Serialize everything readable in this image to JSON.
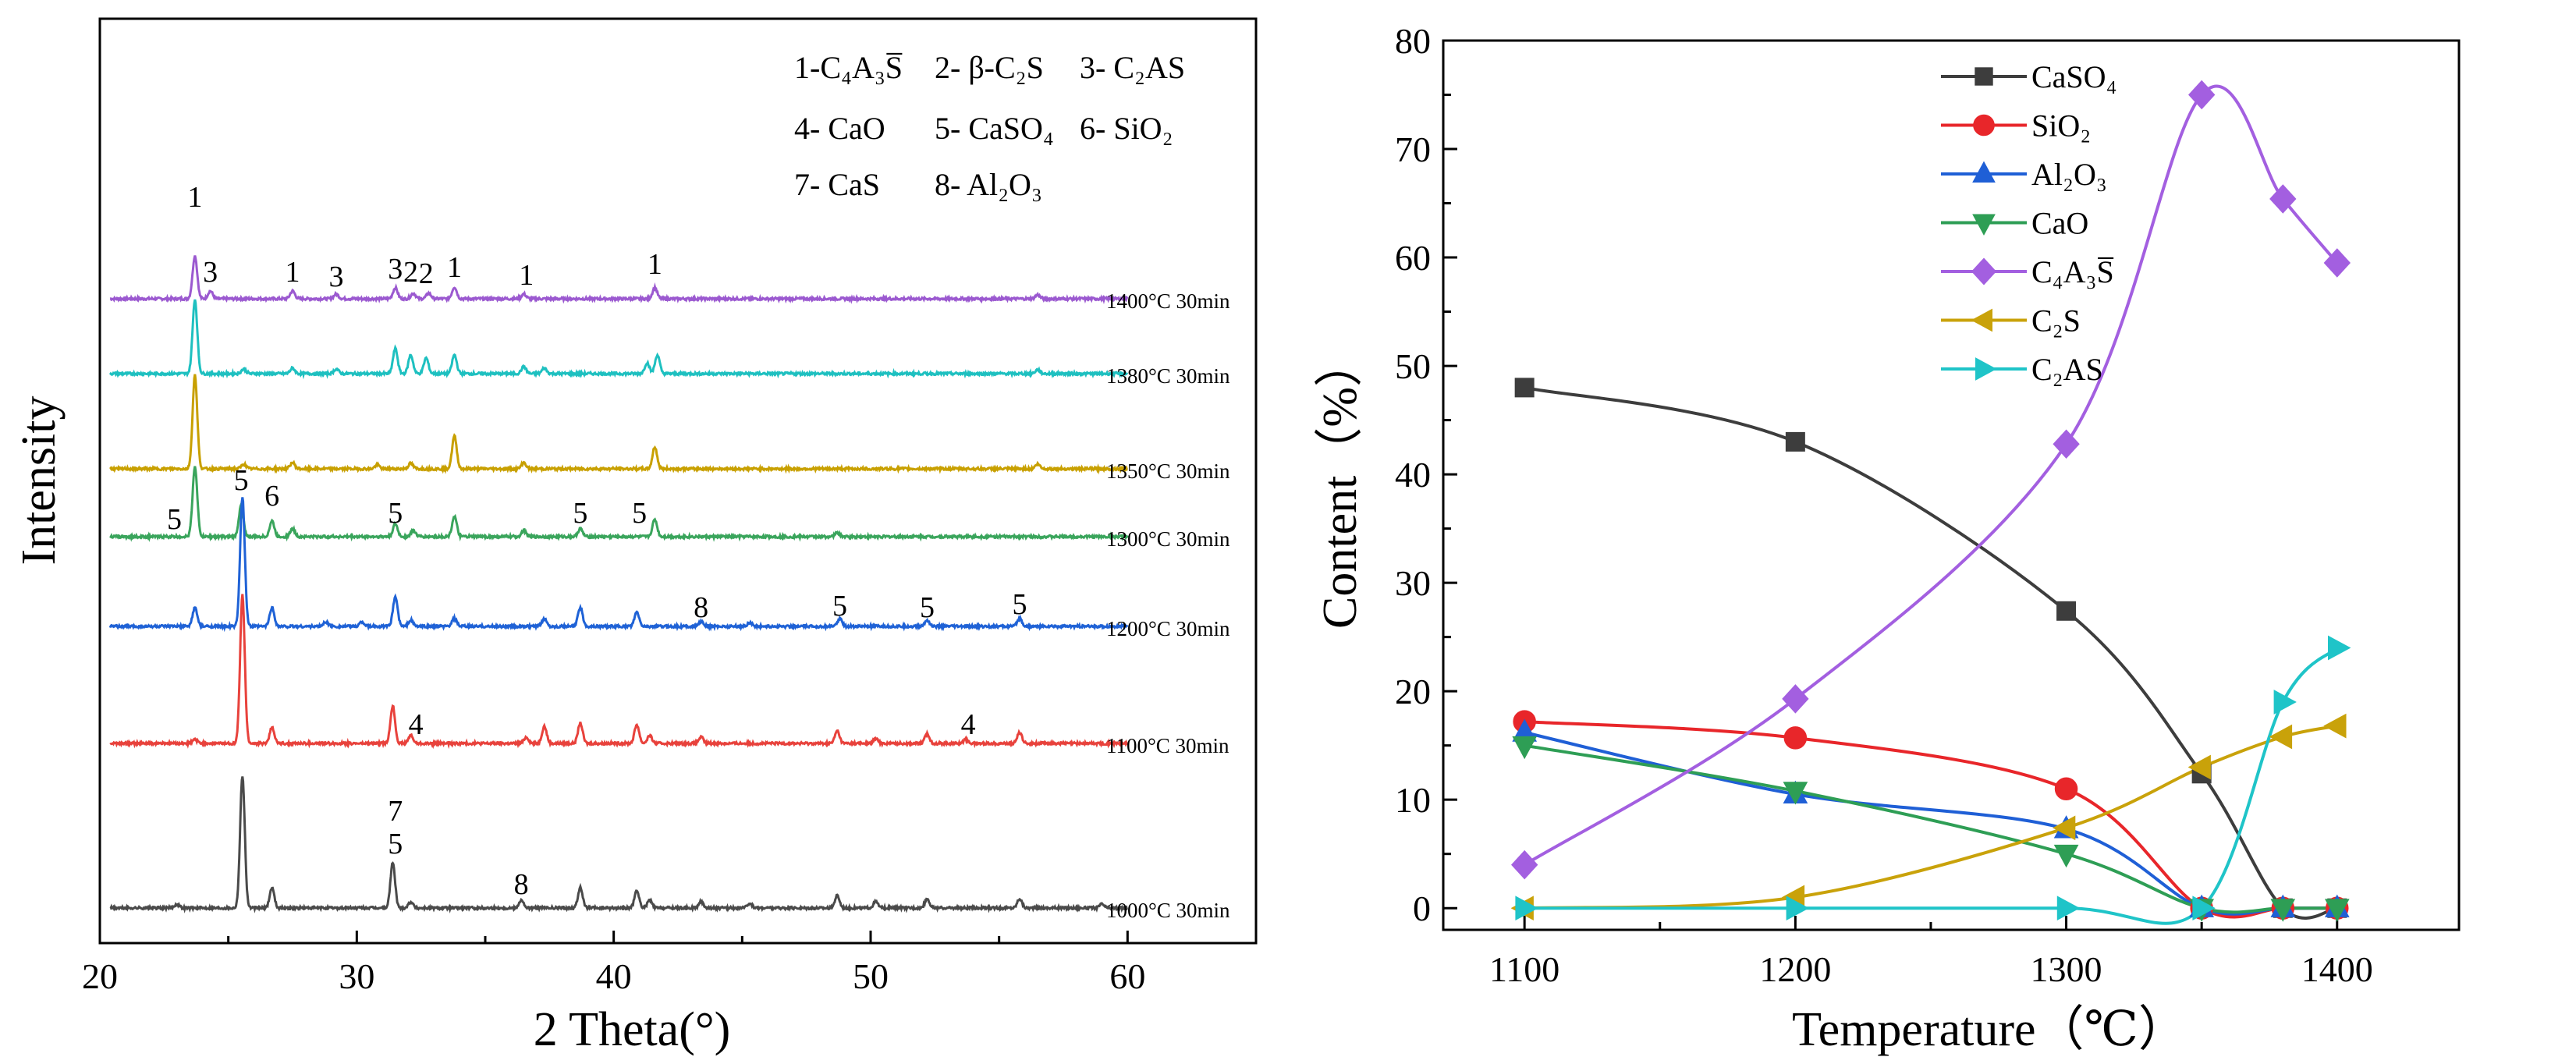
{
  "chart_data": [
    {
      "type": "line",
      "subtype": "xrd_patterns",
      "xlabel": "2 Theta(°)",
      "ylabel": "Intensity",
      "xlim": [
        20,
        65
      ],
      "xticks": [
        "20",
        "30",
        "40",
        "50",
        "60"
      ],
      "legend": {
        "position": "top-right",
        "rows": [
          [
            {
              "text": "1-C₄A₃S̅"
            },
            {
              "text": "2- β-C₂S"
            },
            {
              "text": "3- C₂AS"
            }
          ],
          [
            {
              "text": "4- CaO"
            },
            {
              "text": "5- CaSO₄"
            },
            {
              "text": "6- SiO₂"
            }
          ],
          [
            {
              "text": "7- CaS"
            },
            {
              "text": "8- Al₂O₃"
            }
          ]
        ]
      },
      "series": [
        {
          "name": "1400°C 30min",
          "color": "#9b59d0",
          "peaks": [
            [
              23.7,
              55
            ],
            [
              24.3,
              10
            ],
            [
              27.5,
              10
            ],
            [
              29.2,
              6
            ],
            [
              31.5,
              14
            ],
            [
              32.2,
              7
            ],
            [
              32.8,
              7
            ],
            [
              33.8,
              15
            ],
            [
              36.5,
              6
            ],
            [
              41.6,
              14
            ],
            [
              56.5,
              5
            ]
          ],
          "labels": [
            {
              "text": "1",
              "at": 23.7,
              "dy": -118
            },
            {
              "text": "3",
              "at": 24.3,
              "dy": -22
            },
            {
              "text": "1",
              "at": 27.5,
              "dy": -22
            },
            {
              "text": "3",
              "at": 29.2,
              "dy": -16
            },
            {
              "text": "3",
              "at": 31.5,
              "dy": -26
            },
            {
              "text": "2",
              "at": 32.1,
              "dy": -22
            },
            {
              "text": "2",
              "at": 32.7,
              "dy": -20
            },
            {
              "text": "1",
              "at": 33.8,
              "dy": -28
            },
            {
              "text": "1",
              "at": 36.6,
              "dy": -18
            },
            {
              "text": "1",
              "at": 41.6,
              "dy": -32
            }
          ]
        },
        {
          "name": "1380°C 30min",
          "color": "#1ec0c0",
          "peaks": [
            [
              23.7,
              95
            ],
            [
              25.6,
              6
            ],
            [
              27.5,
              7
            ],
            [
              29.2,
              6
            ],
            [
              31.5,
              32
            ],
            [
              32.1,
              24
            ],
            [
              32.7,
              20
            ],
            [
              33.8,
              24
            ],
            [
              36.5,
              9
            ],
            [
              37.3,
              7
            ],
            [
              41.3,
              14
            ],
            [
              41.7,
              24
            ],
            [
              56.5,
              5
            ]
          ],
          "labels": []
        },
        {
          "name": "1350°C 30min",
          "color": "#c8a000",
          "peaks": [
            [
              23.7,
              120
            ],
            [
              25.6,
              6
            ],
            [
              27.5,
              8
            ],
            [
              30.8,
              5
            ],
            [
              32.1,
              7
            ],
            [
              33.8,
              42
            ],
            [
              36.5,
              8
            ],
            [
              41.6,
              28
            ],
            [
              56.5,
              6
            ]
          ],
          "labels": []
        },
        {
          "name": "1300°C 30min",
          "color": "#3aa55c",
          "peaks": [
            [
              23.7,
              90
            ],
            [
              25.5,
              40
            ],
            [
              26.7,
              20
            ],
            [
              27.5,
              10
            ],
            [
              31.5,
              16
            ],
            [
              32.2,
              8
            ],
            [
              33.8,
              26
            ],
            [
              36.5,
              8
            ],
            [
              38.7,
              10
            ],
            [
              41.6,
              22
            ],
            [
              48.7,
              5
            ]
          ],
          "labels": [
            {
              "text": "5",
              "at": 22.9,
              "dy": -10
            },
            {
              "text": "5",
              "at": 25.5,
              "dy": -60
            },
            {
              "text": "6",
              "at": 26.7,
              "dy": -40
            },
            {
              "text": "5",
              "at": 31.5,
              "dy": -18
            },
            {
              "text": "5",
              "at": 38.7,
              "dy": -18
            },
            {
              "text": "5",
              "at": 41.0,
              "dy": -18
            }
          ]
        },
        {
          "name": "1200°C 30min",
          "color": "#1f62d6",
          "peaks": [
            [
              23.7,
              24
            ],
            [
              25.55,
              165
            ],
            [
              26.7,
              24
            ],
            [
              28.8,
              6
            ],
            [
              30.2,
              6
            ],
            [
              31.5,
              38
            ],
            [
              32.1,
              8
            ],
            [
              33.8,
              10
            ],
            [
              37.3,
              10
            ],
            [
              38.7,
              24
            ],
            [
              40.9,
              18
            ],
            [
              43.4,
              6
            ],
            [
              45.3,
              5
            ],
            [
              48.8,
              10
            ],
            [
              52.2,
              8
            ],
            [
              55.8,
              10
            ]
          ],
          "labels": [
            {
              "text": "8",
              "at": 43.4,
              "dy": -12
            },
            {
              "text": "5",
              "at": 48.8,
              "dy": -14
            },
            {
              "text": "5",
              "at": 52.2,
              "dy": -12
            },
            {
              "text": "5",
              "at": 55.8,
              "dy": -16
            }
          ]
        },
        {
          "name": "1100°C 30min",
          "color": "#e8423c",
          "peaks": [
            [
              25.55,
              190
            ],
            [
              26.7,
              20
            ],
            [
              23.7,
              5
            ],
            [
              31.4,
              48
            ],
            [
              32.1,
              10
            ],
            [
              36.6,
              8
            ],
            [
              37.3,
              22
            ],
            [
              38.7,
              26
            ],
            [
              40.9,
              24
            ],
            [
              41.4,
              10
            ],
            [
              43.4,
              8
            ],
            [
              48.7,
              16
            ],
            [
              50.2,
              6
            ],
            [
              52.2,
              12
            ],
            [
              53.7,
              5
            ],
            [
              55.8,
              14
            ]
          ],
          "labels": [
            {
              "text": "4",
              "at": 32.3,
              "dy": -12
            },
            {
              "text": "4",
              "at": 53.8,
              "dy": -12
            }
          ]
        },
        {
          "name": "1000°C 30min",
          "color": "#4a4a4a",
          "peaks": [
            [
              23.0,
              5
            ],
            [
              25.55,
              170
            ],
            [
              26.7,
              26
            ],
            [
              31.4,
              58
            ],
            [
              32.1,
              8
            ],
            [
              36.4,
              10
            ],
            [
              38.7,
              26
            ],
            [
              40.9,
              22
            ],
            [
              41.4,
              10
            ],
            [
              43.4,
              8
            ],
            [
              45.3,
              6
            ],
            [
              48.7,
              16
            ],
            [
              50.2,
              8
            ],
            [
              52.2,
              12
            ],
            [
              55.8,
              12
            ],
            [
              59.0,
              5
            ]
          ],
          "labels": [
            {
              "text": "7",
              "at": 31.5,
              "dy": -112
            },
            {
              "text": "5",
              "at": 31.5,
              "dy": -70
            },
            {
              "text": "8",
              "at": 36.4,
              "dy": -18
            }
          ]
        }
      ]
    },
    {
      "type": "line",
      "xlabel": "Temperature（℃）",
      "ylabel": "Content（%）",
      "xlim": [
        1070,
        1445
      ],
      "ylim": [
        -2,
        80
      ],
      "xticks": [
        1100,
        1200,
        1300,
        1400
      ],
      "yticks": [
        0,
        10,
        20,
        30,
        40,
        50,
        60,
        70,
        80
      ],
      "legend_position": "top-left",
      "categories": [
        1100,
        1200,
        1300,
        1350,
        1380,
        1400
      ],
      "series": [
        {
          "name": "CaSO₄",
          "color": "#3d3d3d",
          "marker": "square",
          "values": [
            48.0,
            43.0,
            27.4,
            12.4,
            0.0,
            0.0
          ]
        },
        {
          "name": "SiO₂",
          "color": "#e8262a",
          "marker": "circle",
          "values": [
            17.2,
            15.7,
            11.0,
            0.0,
            0.0,
            0.0
          ]
        },
        {
          "name": "Al₂O₃",
          "color": "#1f5fd6",
          "marker": "triangle-up",
          "values": [
            16.2,
            10.5,
            7.3,
            0.0,
            0.0,
            0.0
          ]
        },
        {
          "name": "CaO",
          "color": "#2e9e55",
          "marker": "triangle-down",
          "values": [
            15.0,
            10.8,
            5.0,
            0.0,
            0.0,
            0.0
          ]
        },
        {
          "name": "C₄A₃S̅",
          "color": "#a35fe0",
          "marker": "diamond",
          "values": [
            4.0,
            19.3,
            42.8,
            75.0,
            65.4,
            59.5
          ]
        },
        {
          "name": "C₂S",
          "color": "#c9a20a",
          "marker": "triangle-left",
          "values": [
            0.0,
            1.0,
            7.4,
            13.0,
            15.8,
            16.8
          ]
        },
        {
          "name": "C₂AS",
          "color": "#1fc4c8",
          "marker": "triangle-right",
          "values": [
            0.0,
            0.0,
            0.0,
            0.0,
            19.0,
            24.0
          ]
        }
      ]
    }
  ]
}
